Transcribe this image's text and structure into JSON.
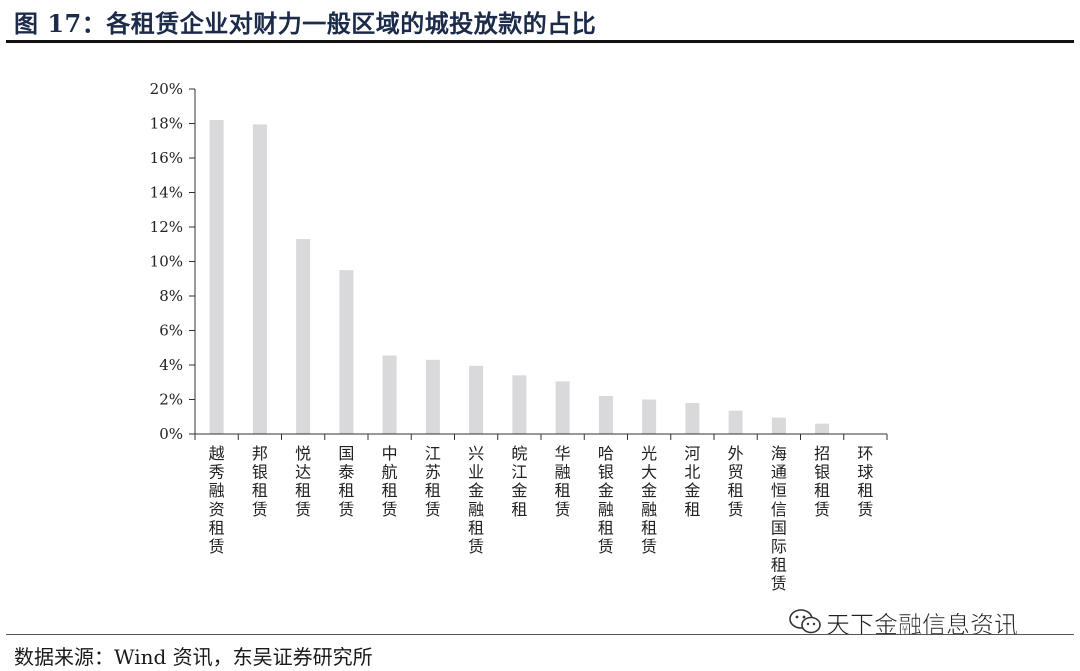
{
  "figure": {
    "title": "图 17：各租赁企业对财力一般区域的城投放款的占比",
    "source": "数据来源：Wind 资讯，东吴证券研究所",
    "watermark": "天下金融信息资讯",
    "watermark_icon": "wechat-icon"
  },
  "colors": {
    "bar": "#d9d9db",
    "axis": "#333333",
    "title": "#1c2b4a"
  },
  "chart_data": {
    "type": "bar",
    "categories": [
      "越秀融资租赁",
      "邦银租赁",
      "悦达租赁",
      "国泰租赁",
      "中航租赁",
      "江苏租赁",
      "兴业金融租赁",
      "皖江金租",
      "华融租赁",
      "哈银金融租赁",
      "光大金融租赁",
      "河北金租",
      "外贸租赁",
      "海通恒信国际租赁",
      "招银租赁",
      "环球租赁"
    ],
    "values": [
      18.2,
      17.95,
      11.3,
      9.5,
      4.55,
      4.3,
      3.95,
      3.4,
      3.05,
      2.2,
      2.0,
      1.8,
      1.35,
      0.95,
      0.6,
      0.0
    ],
    "unit": "%",
    "ylim": [
      0,
      20
    ],
    "yticks": [
      "0%",
      "2%",
      "4%",
      "6%",
      "8%",
      "10%",
      "12%",
      "14%",
      "16%",
      "18%",
      "20%"
    ],
    "grid": false,
    "legend": "none",
    "title": "",
    "xlabel": "",
    "ylabel": ""
  }
}
